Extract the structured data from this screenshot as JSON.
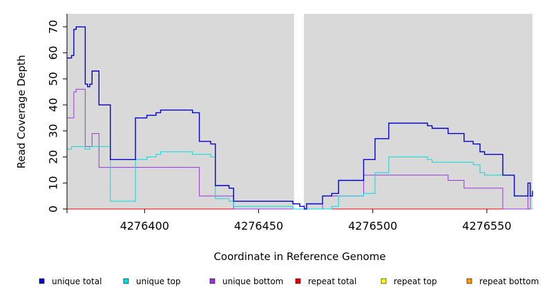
{
  "chart_data": {
    "type": "line",
    "step": true,
    "xlabel": "Coordinate in Reference Genome",
    "ylabel": "Read Coverage Depth",
    "xlim": [
      4276366,
      4276570
    ],
    "ylim": [
      0,
      75
    ],
    "xticks": [
      4276400,
      4276450,
      4276500,
      4276550
    ],
    "xtick_labels": [
      "4276400",
      "4276450",
      "4276500",
      "4276550"
    ],
    "yticks": [
      0,
      10,
      20,
      30,
      40,
      50,
      60,
      70
    ],
    "ytick_labels": [
      "0",
      "10",
      "20",
      "30",
      "40",
      "50",
      "60",
      "70"
    ],
    "background_color": "#d9d9d9",
    "gaps": [
      [
        4276465.5,
        4276469.8
      ]
    ],
    "legend_position": "bottom",
    "series": [
      {
        "name": "unique total",
        "color": "#0000cc",
        "points": [
          [
            4276366,
            58
          ],
          [
            4276368,
            59
          ],
          [
            4276369,
            69
          ],
          [
            4276370,
            70
          ],
          [
            4276374,
            48
          ],
          [
            4276375,
            47
          ],
          [
            4276376,
            48
          ],
          [
            4276377,
            53
          ],
          [
            4276380,
            40
          ],
          [
            4276385,
            19
          ],
          [
            4276396,
            35
          ],
          [
            4276401,
            36
          ],
          [
            4276405,
            37
          ],
          [
            4276407,
            38
          ],
          [
            4276421,
            37
          ],
          [
            4276424,
            26
          ],
          [
            4276429,
            25
          ],
          [
            4276431,
            9
          ],
          [
            4276437,
            8
          ],
          [
            4276439,
            3
          ],
          [
            4276465,
            2
          ],
          [
            4276468,
            1
          ],
          [
            4276470,
            0
          ],
          [
            4276471,
            2
          ],
          [
            4276478,
            5
          ],
          [
            4276482,
            6
          ],
          [
            4276485,
            11
          ],
          [
            4276496,
            19
          ],
          [
            4276501,
            27
          ],
          [
            4276507,
            33
          ],
          [
            4276524,
            32
          ],
          [
            4276526,
            31
          ],
          [
            4276533,
            29
          ],
          [
            4276540,
            26
          ],
          [
            4276544,
            25
          ],
          [
            4276547,
            22
          ],
          [
            4276549,
            21
          ],
          [
            4276557,
            13
          ],
          [
            4276562,
            5
          ],
          [
            4276568,
            10
          ],
          [
            4276569,
            5
          ],
          [
            4276570,
            7
          ]
        ]
      },
      {
        "name": "unique top",
        "color": "#00dddd",
        "points": [
          [
            4276366,
            23
          ],
          [
            4276368,
            24
          ],
          [
            4276374,
            23
          ],
          [
            4276376,
            24
          ],
          [
            4276385,
            3
          ],
          [
            4276396,
            19
          ],
          [
            4276401,
            20
          ],
          [
            4276405,
            21
          ],
          [
            4276407,
            22
          ],
          [
            4276421,
            21
          ],
          [
            4276429,
            20
          ],
          [
            4276431,
            4
          ],
          [
            4276437,
            3
          ],
          [
            4276439,
            1
          ],
          [
            4276465,
            0
          ],
          [
            4276482,
            1
          ],
          [
            4276485,
            5
          ],
          [
            4276496,
            6
          ],
          [
            4276501,
            14
          ],
          [
            4276507,
            20
          ],
          [
            4276524,
            19
          ],
          [
            4276526,
            18
          ],
          [
            4276544,
            17
          ],
          [
            4276547,
            14
          ],
          [
            4276549,
            13
          ],
          [
            4276562,
            5
          ],
          [
            4276569,
            0
          ]
        ]
      },
      {
        "name": "unique bottom",
        "color": "#9933dd",
        "points": [
          [
            4276366,
            35
          ],
          [
            4276369,
            45
          ],
          [
            4276370,
            46
          ],
          [
            4276374,
            24
          ],
          [
            4276377,
            29
          ],
          [
            4276380,
            16
          ],
          [
            4276424,
            5
          ],
          [
            4276437,
            5
          ],
          [
            4276439,
            0
          ],
          [
            4276478,
            5
          ],
          [
            4276496,
            13
          ],
          [
            4276533,
            11
          ],
          [
            4276540,
            8
          ],
          [
            4276557,
            0
          ],
          [
            4276568,
            5
          ],
          [
            4276569,
            0
          ]
        ]
      },
      {
        "name": "repeat total",
        "color": "#ee0000",
        "points": [
          [
            4276366,
            0
          ],
          [
            4276570,
            0
          ]
        ]
      },
      {
        "name": "repeat top",
        "color": "#ffff00",
        "points": [
          [
            4276366,
            0
          ],
          [
            4276570,
            0
          ]
        ]
      },
      {
        "name": "repeat bottom",
        "color": "#ff9900",
        "points": [
          [
            4276366,
            0
          ],
          [
            4276570,
            0
          ]
        ]
      }
    ]
  }
}
